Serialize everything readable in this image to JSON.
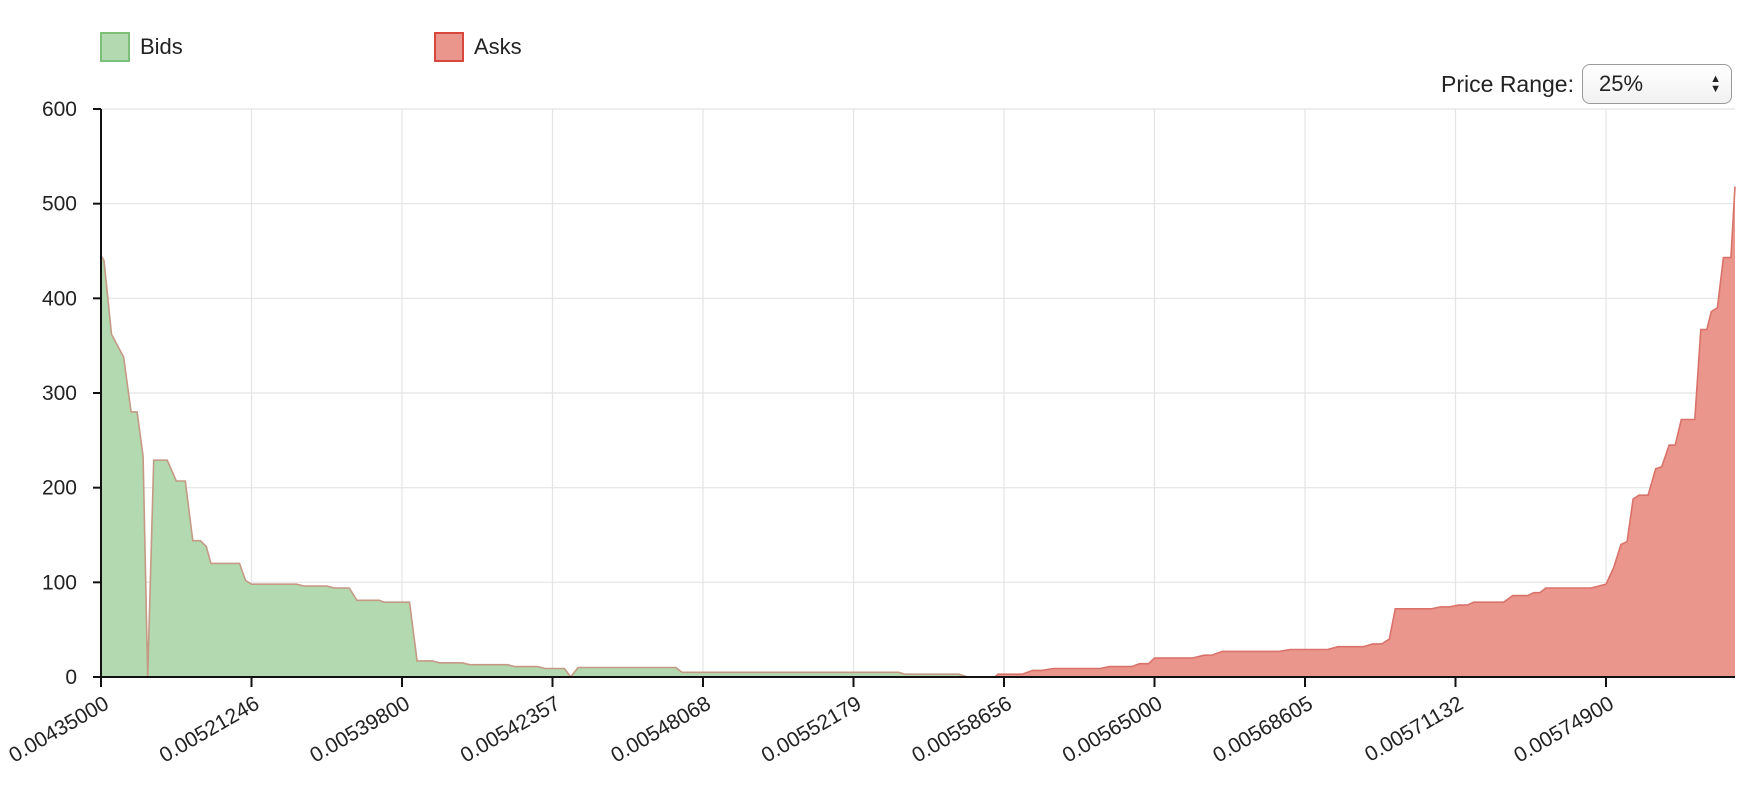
{
  "chart_data": {
    "type": "area",
    "title": "",
    "xlabel": "",
    "ylabel": "",
    "ylim": [
      0,
      600
    ],
    "yticks": [
      0,
      100,
      200,
      300,
      400,
      500,
      600
    ],
    "xticks": [
      "0.00435000",
      "0.00521246",
      "0.00539800",
      "0.00542357",
      "0.00548068",
      "0.00552179",
      "0.00558656",
      "0.00565000",
      "0.00568605",
      "0.00571132",
      "0.00574900"
    ],
    "grid": true,
    "legend_position": "top-left",
    "x_scale": "ordinal (tick index)",
    "series": [
      {
        "name": "Bids",
        "fill": "#b2d9b0",
        "stroke": "#c49a84",
        "points": [
          [
            0,
            445
          ],
          [
            0.02,
            440
          ],
          [
            0.07,
            362
          ],
          [
            0.15,
            338
          ],
          [
            0.2,
            280
          ],
          [
            0.24,
            280
          ],
          [
            0.28,
            233
          ],
          [
            0.31,
            0
          ],
          [
            0.35,
            229
          ],
          [
            0.44,
            229
          ],
          [
            0.5,
            207
          ],
          [
            0.56,
            207
          ],
          [
            0.61,
            144
          ],
          [
            0.66,
            144
          ],
          [
            0.7,
            138
          ],
          [
            0.73,
            120
          ],
          [
            0.92,
            120
          ],
          [
            0.96,
            102
          ],
          [
            1.0,
            98
          ],
          [
            1.3,
            98
          ],
          [
            1.35,
            96
          ],
          [
            1.5,
            96
          ],
          [
            1.55,
            94
          ],
          [
            1.65,
            94
          ],
          [
            1.7,
            81
          ],
          [
            1.85,
            81
          ],
          [
            1.88,
            79
          ],
          [
            2.05,
            79
          ],
          [
            2.1,
            17
          ],
          [
            2.2,
            17
          ],
          [
            2.25,
            15
          ],
          [
            2.4,
            15
          ],
          [
            2.45,
            13
          ],
          [
            2.7,
            13
          ],
          [
            2.75,
            11
          ],
          [
            2.9,
            11
          ],
          [
            2.95,
            9
          ],
          [
            3.08,
            9
          ],
          [
            3.12,
            0
          ],
          [
            3.17,
            10
          ],
          [
            3.82,
            10
          ],
          [
            3.86,
            5
          ],
          [
            5.3,
            5
          ],
          [
            5.34,
            3
          ],
          [
            5.7,
            3
          ],
          [
            5.76,
            0
          ],
          [
            5.82,
            0
          ]
        ]
      },
      {
        "name": "Asks",
        "fill": "#eb968d",
        "stroke": "#d9736a",
        "points": [
          [
            5.82,
            0
          ],
          [
            5.94,
            0
          ],
          [
            5.96,
            3
          ],
          [
            6.12,
            3
          ],
          [
            6.19,
            7
          ],
          [
            6.25,
            7
          ],
          [
            6.33,
            9
          ],
          [
            6.64,
            9
          ],
          [
            6.7,
            11
          ],
          [
            6.85,
            11
          ],
          [
            6.9,
            14
          ],
          [
            6.96,
            14
          ],
          [
            7.0,
            20
          ],
          [
            7.25,
            20
          ],
          [
            7.33,
            23
          ],
          [
            7.38,
            23
          ],
          [
            7.45,
            27
          ],
          [
            7.83,
            27
          ],
          [
            7.9,
            29
          ],
          [
            8.15,
            29
          ],
          [
            8.22,
            32
          ],
          [
            8.39,
            32
          ],
          [
            8.45,
            35
          ],
          [
            8.51,
            35
          ],
          [
            8.56,
            40
          ],
          [
            8.6,
            72
          ],
          [
            8.84,
            72
          ],
          [
            8.9,
            74
          ],
          [
            8.96,
            74
          ],
          [
            9.02,
            76
          ],
          [
            9.08,
            76
          ],
          [
            9.12,
            79
          ],
          [
            9.32,
            79
          ],
          [
            9.38,
            86
          ],
          [
            9.48,
            86
          ],
          [
            9.52,
            89
          ],
          [
            9.56,
            89
          ],
          [
            9.6,
            94
          ],
          [
            9.9,
            94
          ],
          [
            9.95,
            96
          ],
          [
            10.0,
            98
          ],
          [
            10.05,
            115
          ],
          [
            10.1,
            140
          ],
          [
            10.14,
            143
          ],
          [
            10.18,
            188
          ],
          [
            10.22,
            192
          ],
          [
            10.28,
            192
          ],
          [
            10.33,
            220
          ],
          [
            10.37,
            222
          ],
          [
            10.42,
            245
          ],
          [
            10.46,
            245
          ],
          [
            10.5,
            272
          ],
          [
            10.59,
            272
          ],
          [
            10.63,
            367
          ],
          [
            10.67,
            367
          ],
          [
            10.7,
            386
          ],
          [
            10.74,
            390
          ],
          [
            10.78,
            443
          ],
          [
            10.83,
            443
          ],
          [
            10.87,
            518
          ],
          [
            10.93,
            518
          ]
        ]
      }
    ]
  },
  "controls": {
    "price_range_label": "Price Range:",
    "price_range_value": "25%"
  }
}
